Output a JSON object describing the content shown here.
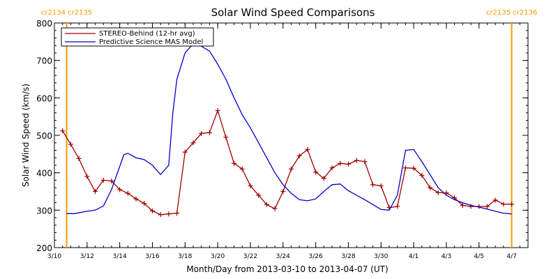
{
  "chart_data": {
    "type": "line",
    "title": "Solar Wind Speed Comparisons",
    "xlabel": "Month/Day from 2013-03-10 to 2013-04-07 (UT)",
    "ylabel": "Solar Wind Speed (km/s)",
    "xlim": [
      "2013-03-10",
      "2013-04-08"
    ],
    "ylim": [
      200,
      800
    ],
    "grid": false,
    "legend_position": "top-left",
    "x_ticks": [
      "3/10",
      "3/12",
      "3/14",
      "3/16",
      "3/18",
      "3/20",
      "3/22",
      "3/24",
      "3/26",
      "3/28",
      "3/30",
      "4/1",
      "4/3",
      "4/5",
      "4/7"
    ],
    "y_ticks": [
      "200",
      "300",
      "400",
      "500",
      "600",
      "700",
      "800"
    ],
    "markers": [
      {
        "date": "2013-03-10 18:00",
        "labels": [
          "cr2134",
          "cr2135"
        ],
        "color": "#ff9900"
      },
      {
        "date": "2013-04-07 00:00",
        "labels": [
          "cr2135",
          "cr2136"
        ],
        "color": "#ff9900"
      }
    ],
    "series": [
      {
        "name": "STEREO-Behind (12-hr avg)",
        "color": "#a00000",
        "marker": "plus",
        "points": [
          [
            "2013-03-10 12:00",
            512
          ],
          [
            "2013-03-11 00:00",
            476
          ],
          [
            "2013-03-11 12:00",
            438
          ],
          [
            "2013-03-12 00:00",
            390
          ],
          [
            "2013-03-12 12:00",
            350
          ],
          [
            "2013-03-13 00:00",
            380
          ],
          [
            "2013-03-13 12:00",
            378
          ],
          [
            "2013-03-14 00:00",
            355
          ],
          [
            "2013-03-14 12:00",
            345
          ],
          [
            "2013-03-15 00:00",
            330
          ],
          [
            "2013-03-15 12:00",
            318
          ],
          [
            "2013-03-16 00:00",
            298
          ],
          [
            "2013-03-16 12:00",
            288
          ],
          [
            "2013-03-17 00:00",
            290
          ],
          [
            "2013-03-17 12:00",
            292
          ],
          [
            "2013-03-18 00:00",
            455
          ],
          [
            "2013-03-18 12:00",
            480
          ],
          [
            "2013-03-19 00:00",
            505
          ],
          [
            "2013-03-19 12:00",
            507
          ],
          [
            "2013-03-20 00:00",
            566
          ],
          [
            "2013-03-20 12:00",
            495
          ],
          [
            "2013-03-21 00:00",
            425
          ],
          [
            "2013-03-21 12:00",
            410
          ],
          [
            "2013-03-22 00:00",
            365
          ],
          [
            "2013-03-22 12:00",
            340
          ],
          [
            "2013-03-23 00:00",
            315
          ],
          [
            "2013-03-23 12:00",
            304
          ],
          [
            "2013-03-24 00:00",
            350
          ],
          [
            "2013-03-24 12:00",
            410
          ],
          [
            "2013-03-25 00:00",
            445
          ],
          [
            "2013-03-25 12:00",
            462
          ],
          [
            "2013-03-26 00:00",
            402
          ],
          [
            "2013-03-26 12:00",
            385
          ],
          [
            "2013-03-27 00:00",
            413
          ],
          [
            "2013-03-27 12:00",
            425
          ],
          [
            "2013-03-28 00:00",
            423
          ],
          [
            "2013-03-28 12:00",
            433
          ],
          [
            "2013-03-29 00:00",
            430
          ],
          [
            "2013-03-29 12:00",
            368
          ],
          [
            "2013-03-30 00:00",
            365
          ],
          [
            "2013-03-30 12:00",
            307
          ],
          [
            "2013-03-31 00:00",
            310
          ],
          [
            "2013-03-31 12:00",
            413
          ],
          [
            "2013-04-01 00:00",
            412
          ],
          [
            "2013-04-01 12:00",
            393
          ],
          [
            "2013-04-02 00:00",
            360
          ],
          [
            "2013-04-02 12:00",
            347
          ],
          [
            "2013-04-03 00:00",
            346
          ],
          [
            "2013-04-03 12:00",
            333
          ],
          [
            "2013-04-04 00:00",
            313
          ],
          [
            "2013-04-04 12:00",
            310
          ],
          [
            "2013-04-05 00:00",
            310
          ],
          [
            "2013-04-05 12:00",
            310
          ],
          [
            "2013-04-06 00:00",
            327
          ],
          [
            "2013-04-06 12:00",
            316
          ],
          [
            "2013-04-07 00:00",
            316
          ]
        ]
      },
      {
        "name": "Predictive Science MAS Model",
        "color": "#0000c8",
        "marker": "none",
        "points": [
          [
            "2013-03-10 18:00",
            291
          ],
          [
            "2013-03-11 06:00",
            291
          ],
          [
            "2013-03-12 00:00",
            297
          ],
          [
            "2013-03-12 12:00",
            300
          ],
          [
            "2013-03-13 00:00",
            311
          ],
          [
            "2013-03-13 12:00",
            355
          ],
          [
            "2013-03-14 00:00",
            417
          ],
          [
            "2013-03-14 06:00",
            448
          ],
          [
            "2013-03-14 12:00",
            452
          ],
          [
            "2013-03-15 00:00",
            440
          ],
          [
            "2013-03-15 12:00",
            435
          ],
          [
            "2013-03-16 00:00",
            420
          ],
          [
            "2013-03-16 12:00",
            395
          ],
          [
            "2013-03-17 00:00",
            420
          ],
          [
            "2013-03-17 06:00",
            560
          ],
          [
            "2013-03-17 12:00",
            650
          ],
          [
            "2013-03-18 00:00",
            720
          ],
          [
            "2013-03-18 12:00",
            745
          ],
          [
            "2013-03-19 00:00",
            738
          ],
          [
            "2013-03-19 12:00",
            725
          ],
          [
            "2013-03-20 00:00",
            690
          ],
          [
            "2013-03-20 12:00",
            650
          ],
          [
            "2013-03-21 00:00",
            600
          ],
          [
            "2013-03-21 12:00",
            555
          ],
          [
            "2013-03-22 00:00",
            520
          ],
          [
            "2013-03-22 12:00",
            480
          ],
          [
            "2013-03-23 00:00",
            440
          ],
          [
            "2013-03-23 12:00",
            400
          ],
          [
            "2013-03-24 00:00",
            368
          ],
          [
            "2013-03-24 12:00",
            345
          ],
          [
            "2013-03-25 00:00",
            328
          ],
          [
            "2013-03-25 12:00",
            325
          ],
          [
            "2013-03-26 00:00",
            330
          ],
          [
            "2013-03-26 12:00",
            350
          ],
          [
            "2013-03-27 00:00",
            368
          ],
          [
            "2013-03-27 12:00",
            370
          ],
          [
            "2013-03-28 00:00",
            352
          ],
          [
            "2013-03-28 12:00",
            340
          ],
          [
            "2013-03-29 00:00",
            328
          ],
          [
            "2013-03-29 12:00",
            315
          ],
          [
            "2013-03-30 00:00",
            302
          ],
          [
            "2013-03-30 12:00",
            300
          ],
          [
            "2013-03-31 00:00",
            340
          ],
          [
            "2013-03-31 06:00",
            400
          ],
          [
            "2013-03-31 12:00",
            460
          ],
          [
            "2013-04-01 00:00",
            462
          ],
          [
            "2013-04-01 12:00",
            430
          ],
          [
            "2013-04-02 00:00",
            395
          ],
          [
            "2013-04-02 12:00",
            360
          ],
          [
            "2013-04-03 00:00",
            340
          ],
          [
            "2013-04-03 12:00",
            328
          ],
          [
            "2013-04-04 00:00",
            320
          ],
          [
            "2013-04-04 12:00",
            313
          ],
          [
            "2013-04-05 00:00",
            308
          ],
          [
            "2013-04-05 12:00",
            303
          ],
          [
            "2013-04-06 00:00",
            297
          ],
          [
            "2013-04-06 12:00",
            292
          ],
          [
            "2013-04-07 00:00",
            290
          ]
        ]
      }
    ]
  }
}
